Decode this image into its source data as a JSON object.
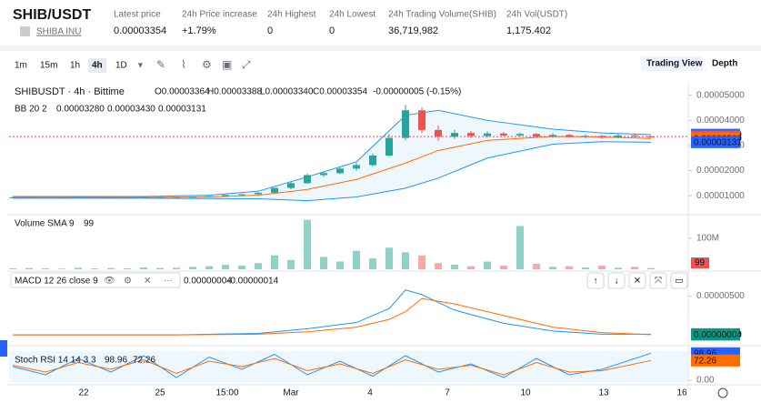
{
  "header": {
    "symbol": "SHIB/USDT",
    "name": "SHIBA INU",
    "stats": [
      {
        "label": "Latest price",
        "value": "0.00003354"
      },
      {
        "label": "24h Price increase",
        "value": "+1.79%"
      },
      {
        "label": "24h Highest",
        "value": "0"
      },
      {
        "label": "24h Lowest",
        "value": "0"
      },
      {
        "label": "24h Trading Volume(SHIB)",
        "value": "36,719,982"
      },
      {
        "label": "24h Vol(USDT)",
        "value": "1,175.402"
      }
    ]
  },
  "toolbar": {
    "intervals": [
      "1m",
      "15m",
      "1h",
      "4h",
      "1D"
    ],
    "active": "4h",
    "views": [
      "Trading View",
      "Depth"
    ]
  },
  "x_axis": {
    "labels": [
      "22",
      "25",
      "15:00",
      "Mar",
      "4",
      "7",
      "10",
      "13",
      "16"
    ]
  },
  "chart_data": [
    {
      "type": "candlestick",
      "title": "SHIBUSDT · 4h · Bittime",
      "legend": [
        "O0.00003364",
        "H0.00003388",
        "L0.00003340",
        "C0.00003354",
        "-0.00000005 (-0.15%)"
      ],
      "indicator": "BB 20 2",
      "indicator_values": [
        "0.00003280",
        "0.00003430",
        "0.00003131"
      ],
      "up_color": "#26a69a",
      "down_color": "#ef5350",
      "candles": [
        [
          9.3e-06,
          9.5e-06,
          9.1e-06,
          9.4e-06
        ],
        [
          9.4e-06,
          9.6e-06,
          9.2e-06,
          9.3e-06
        ],
        [
          9.3e-06,
          9.4e-06,
          9.1e-06,
          9.2e-06
        ],
        [
          9.2e-06,
          9.4e-06,
          9.1e-06,
          9.3e-06
        ],
        [
          9.3e-06,
          9.5e-06,
          9.2e-06,
          9.4e-06
        ],
        [
          9.4e-06,
          9.5e-06,
          9.2e-06,
          9.3e-06
        ],
        [
          9.3e-06,
          9.4e-06,
          9.1e-06,
          9.2e-06
        ],
        [
          9.2e-06,
          9.4e-06,
          9.1e-06,
          9.3e-06
        ],
        [
          9.3e-06,
          9.5e-06,
          9.2e-06,
          9.4e-06
        ],
        [
          9.4e-06,
          9.6e-06,
          9.3e-06,
          9.5e-06
        ],
        [
          9.5e-06,
          9.6e-06,
          9.3e-06,
          9.4e-06
        ],
        [
          9.4e-06,
          9.7e-06,
          9.3e-06,
          9.6e-06
        ],
        [
          9.6e-06,
          9.9e-06,
          9.5e-06,
          9.8e-06
        ],
        [
          9.8e-06,
          1.04e-05,
          9.7e-06,
          1.03e-05
        ],
        [
          1.03e-05,
          1.08e-05,
          1e-05,
          1.06e-05
        ],
        [
          1.06e-05,
          1.14e-05,
          1.04e-05,
          1.12e-05
        ],
        [
          1.12e-05,
          1.34e-05,
          1.1e-05,
          1.31e-05
        ],
        [
          1.31e-05,
          1.55e-05,
          1.26e-05,
          1.5e-05
        ],
        [
          1.5e-05,
          1.88e-05,
          1.47e-05,
          1.82e-05
        ],
        [
          1.82e-05,
          1.96e-05,
          1.75e-05,
          1.9e-05
        ],
        [
          1.9e-05,
          2.15e-05,
          1.86e-05,
          2.08e-05
        ],
        [
          2.08e-05,
          2.3e-05,
          2e-05,
          2.22e-05
        ],
        [
          2.22e-05,
          2.68e-05,
          2.18e-05,
          2.6e-05
        ],
        [
          2.6e-05,
          3.45e-05,
          2.55e-05,
          3.3e-05
        ],
        [
          3.3e-05,
          4.62e-05,
          3.2e-05,
          4.4e-05
        ],
        [
          4.4e-05,
          4.52e-05,
          3.5e-05,
          3.62e-05
        ],
        [
          3.62e-05,
          3.8e-05,
          3.18e-05,
          3.35e-05
        ],
        [
          3.35e-05,
          3.62e-05,
          3.26e-05,
          3.5e-05
        ],
        [
          3.5e-05,
          3.58e-05,
          3.3e-05,
          3.38e-05
        ],
        [
          3.38e-05,
          3.56e-05,
          3.32e-05,
          3.48e-05
        ],
        [
          3.48e-05,
          3.54e-05,
          3.36e-05,
          3.4e-05
        ],
        [
          3.4e-05,
          3.52e-05,
          3.34e-05,
          3.46e-05
        ],
        [
          3.46e-05,
          3.5e-05,
          3.32e-05,
          3.36e-05
        ],
        [
          3.36e-05,
          3.48e-05,
          3.3e-05,
          3.42e-05
        ],
        [
          3.42e-05,
          3.46e-05,
          3.3e-05,
          3.34e-05
        ],
        [
          3.34e-05,
          3.44e-05,
          3.28e-05,
          3.38e-05
        ],
        [
          3.38e-05,
          3.42e-05,
          3.26e-05,
          3.32e-05
        ],
        [
          3.32e-05,
          3.45e-05,
          3.28e-05,
          3.4e-05
        ],
        [
          3.4e-05,
          3.48e-05,
          3.33e-05,
          3.36e-05
        ],
        [
          3.36e-05,
          3.39e-05,
          3.34e-05,
          3.354e-05
        ]
      ],
      "bands": {
        "x": [
          0,
          8,
          12,
          15,
          18,
          21,
          24,
          26,
          29,
          33,
          36,
          39
        ],
        "upper": [
          9.7e-06,
          9.7e-06,
          1.02e-05,
          1.18e-05,
          1.75e-05,
          2.35e-05,
          4.2e-05,
          4.4e-05,
          4e-05,
          3.65e-05,
          3.5e-05,
          3.43e-05
        ],
        "middle": [
          9.3e-06,
          9.3e-06,
          9.5e-06,
          1.02e-05,
          1.25e-05,
          1.65e-05,
          2.3e-05,
          2.8e-05,
          3.2e-05,
          3.36e-05,
          3.34e-05,
          3.28e-05
        ],
        "lower": [
          9e-06,
          9e-06,
          8.9e-06,
          8.8e-06,
          8e-06,
          9.5e-06,
          1.3e-05,
          1.7e-05,
          2.5e-05,
          3.05e-05,
          3.15e-05,
          3.13e-05
        ],
        "colors": [
          "#2196f3",
          "#ff6d00",
          "#2196f3"
        ]
      },
      "ylim": [
        3.9e-06,
        5.46e-05
      ],
      "yticks": [
        {
          "value": 1e-05,
          "label": "0.00001000"
        },
        {
          "value": 2e-05,
          "label": "0.00002000"
        },
        {
          "value": 3e-05,
          "label": "0.00003000"
        },
        {
          "value": 4e-05,
          "label": "0.00004000"
        },
        {
          "value": 5e-05,
          "label": "0.00005000"
        }
      ],
      "axis_labels": [
        {
          "value": 3.43e-05,
          "label": "0.00003430",
          "color": "#2962ff"
        },
        {
          "value": 3.354e-05,
          "label": "0.00003354",
          "color": "#ef5350"
        },
        {
          "value": 3.28e-05,
          "label": "0.00003280",
          "color": "#ff6d00"
        },
        {
          "value": 3.131e-05,
          "label": "0.00003131",
          "color": "#2962ff"
        }
      ]
    },
    {
      "type": "bar",
      "title": "Volume SMA 9",
      "title_value": "99",
      "values": [
        3000000,
        4000000,
        3000000,
        2000000,
        5000000,
        3000000,
        4000000,
        3000000,
        6000000,
        4000000,
        5000000,
        8000000,
        10000000,
        15000000,
        12000000,
        20000000,
        45000000,
        30000000,
        160000000,
        40000000,
        25000000,
        60000000,
        35000000,
        70000000,
        55000000,
        45000000,
        20000000,
        15000000,
        10000000,
        25000000,
        12000000,
        140000000,
        18000000,
        8000000,
        10000000,
        6000000,
        12000000,
        5000000,
        8000000,
        4000000
      ],
      "ylim": [
        0,
        165000000
      ],
      "yticks": [
        {
          "value": 100000000,
          "label": "100M"
        }
      ],
      "last_label": "99"
    },
    {
      "type": "line",
      "title": "MACD 12 26 close 9",
      "legend_values": [
        "0.00000004",
        "-0.00000014"
      ],
      "x": [
        0,
        10,
        15,
        18,
        21,
        23,
        24,
        25,
        27,
        30,
        33,
        36,
        39
      ],
      "series": [
        {
          "name": "MACD",
          "color": "#2196f3",
          "values": [
            0,
            0,
            2e-07,
            8e-07,
            1.6e-06,
            3.4e-06,
            5.8e-06,
            5.2e-06,
            3.2e-06,
            1.5e-06,
            5e-07,
            1e-07,
            1e-07
          ]
        },
        {
          "name": "Signal",
          "color": "#ff6d00",
          "values": [
            0,
            0,
            1e-07,
            4e-07,
            1e-06,
            2e-06,
            3e-06,
            4.7e-06,
            4e-06,
            2.5e-06,
            1e-06,
            3e-07,
            4e-08
          ]
        }
      ],
      "ylim": [
        -8e-07,
        8e-06
      ],
      "yticks": [
        {
          "value": 5e-06,
          "label": "0.00000500"
        }
      ],
      "axis_labels": [
        {
          "value": 1e-07,
          "label": "0.00000010",
          "color": "#089981"
        },
        {
          "value": 4e-08,
          "label": "0.00000004",
          "color": "#089981"
        }
      ]
    },
    {
      "type": "line",
      "title": "Stoch RSI 14 14 3 3",
      "legend_values": [
        "98.96",
        "72.26"
      ],
      "x": [
        0,
        2,
        4,
        6,
        8,
        10,
        12,
        14,
        16,
        18,
        20,
        22,
        24,
        26,
        28,
        30,
        32,
        34,
        36,
        39
      ],
      "series": [
        {
          "name": "K",
          "color": "#2196f3",
          "values": [
            50,
            20,
            80,
            30,
            90,
            10,
            85,
            40,
            95,
            20,
            70,
            15,
            90,
            30,
            60,
            10,
            80,
            20,
            40,
            98.96
          ]
        },
        {
          "name": "D",
          "color": "#ff6d00",
          "values": [
            55,
            30,
            65,
            40,
            75,
            25,
            70,
            50,
            80,
            35,
            60,
            25,
            75,
            40,
            55,
            20,
            65,
            30,
            35,
            72.26
          ]
        }
      ],
      "ylim": [
        0,
        100
      ],
      "yticks": [
        {
          "value": 0,
          "label": "0.00"
        }
      ],
      "axis_labels": [
        {
          "value": 98.96,
          "label": "98.96",
          "color": "#2962ff"
        },
        {
          "value": 72.26,
          "label": "72.26",
          "color": "#ff6d00"
        }
      ]
    }
  ]
}
